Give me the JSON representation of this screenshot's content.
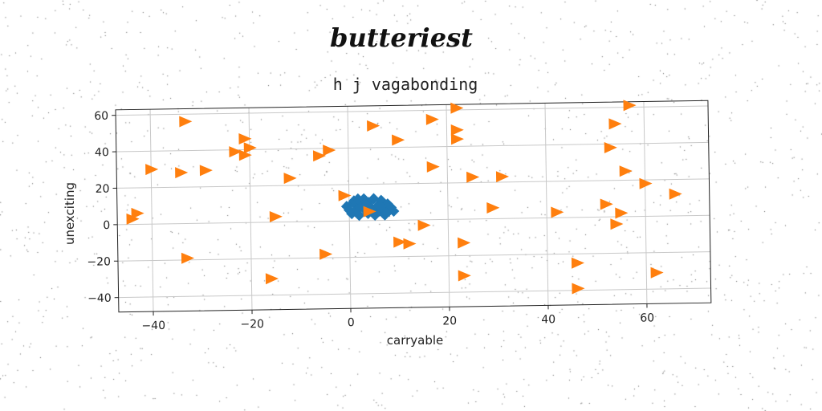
{
  "suptitle": "butteriest",
  "chart_data": {
    "type": "scatter",
    "title": "h j vagabonding",
    "xlabel": "carryable",
    "ylabel": "unexciting",
    "xlim": [
      -47,
      73
    ],
    "ylim": [
      -48,
      63
    ],
    "xticks": [
      -40,
      -20,
      0,
      20,
      40,
      60
    ],
    "yticks": [
      60,
      40,
      20,
      0,
      -20,
      -40
    ],
    "grid": true,
    "series": [
      {
        "marker": "diamond",
        "color": "#1f77b4",
        "points": [
          [
            -0.5,
            8
          ],
          [
            0.5,
            4
          ],
          [
            0.8,
            10
          ],
          [
            1.5,
            6
          ],
          [
            2,
            3
          ],
          [
            2.5,
            9
          ],
          [
            3,
            12
          ],
          [
            3.2,
            6
          ],
          [
            3.8,
            4
          ],
          [
            4,
            10
          ],
          [
            4.5,
            7
          ],
          [
            5,
            12
          ],
          [
            5.2,
            3
          ],
          [
            5.8,
            8
          ],
          [
            6,
            5
          ],
          [
            6.5,
            11
          ],
          [
            7,
            6
          ],
          [
            7.2,
            3
          ],
          [
            7.8,
            9
          ],
          [
            8,
            5
          ],
          [
            8.5,
            7
          ],
          [
            9,
            5
          ],
          [
            1,
            11
          ],
          [
            2.2,
            7.5
          ],
          [
            3.5,
            8.5
          ],
          [
            4.8,
            5
          ],
          [
            6.2,
            8
          ],
          [
            7.5,
            4
          ],
          [
            0,
            6
          ],
          [
            1.8,
            12
          ]
        ]
      },
      {
        "marker": "triangle-right",
        "color": "#ff7f0e",
        "points": [
          [
            -33,
            56
          ],
          [
            -21,
            46
          ],
          [
            -23,
            39
          ],
          [
            -21,
            37
          ],
          [
            -20,
            41
          ],
          [
            -40,
            30
          ],
          [
            -34,
            28
          ],
          [
            -29,
            29
          ],
          [
            -43,
            6
          ],
          [
            -44,
            3
          ],
          [
            -33,
            -19
          ],
          [
            -16,
            -31
          ],
          [
            -15,
            3
          ],
          [
            -12,
            24
          ],
          [
            -6,
            36
          ],
          [
            -4,
            39
          ],
          [
            -5,
            -18
          ],
          [
            -1,
            14
          ],
          [
            5,
            52
          ],
          [
            10,
            44
          ],
          [
            17,
            55
          ],
          [
            22,
            61
          ],
          [
            22,
            49
          ],
          [
            22,
            44
          ],
          [
            17,
            29
          ],
          [
            25,
            23
          ],
          [
            31,
            23
          ],
          [
            29,
            6
          ],
          [
            4,
            5
          ],
          [
            15,
            -3
          ],
          [
            10,
            -12
          ],
          [
            12,
            -13
          ],
          [
            23,
            -13
          ],
          [
            23,
            -31
          ],
          [
            42,
            3
          ],
          [
            46,
            -25
          ],
          [
            46,
            -39
          ],
          [
            57,
            61
          ],
          [
            54,
            51
          ],
          [
            53,
            38
          ],
          [
            56,
            25
          ],
          [
            60,
            18
          ],
          [
            66,
            12
          ],
          [
            52,
            7
          ],
          [
            55,
            2
          ],
          [
            54,
            -4
          ],
          [
            62,
            -31
          ]
        ]
      }
    ]
  }
}
